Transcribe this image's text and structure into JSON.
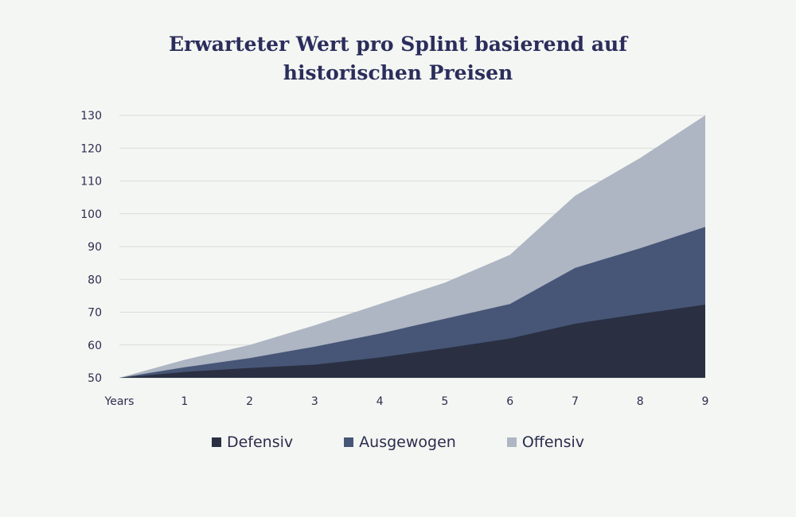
{
  "title_line1": "Erwarteter Wert pro Splint basierend auf",
  "title_line2": "historischen Preisen",
  "chart_data": {
    "type": "area",
    "stacked": true,
    "title": "Erwarteter Wert pro Splint basierend auf historischen Preisen",
    "xlabel": "",
    "ylabel": "",
    "categories": [
      "Years",
      "1",
      "2",
      "3",
      "4",
      "5",
      "6",
      "7",
      "8",
      "9"
    ],
    "x": [
      0,
      1,
      2,
      3,
      4,
      5,
      6,
      7,
      8,
      9
    ],
    "ylim": [
      50,
      130
    ],
    "yticks": [
      50,
      60,
      70,
      80,
      90,
      100,
      110,
      120,
      130
    ],
    "grid": true,
    "legend_position": "bottom",
    "series": [
      {
        "name": "Defensiv",
        "color": "#2a3042",
        "values": [
          50,
          51.8,
          53.0,
          54.0,
          56.2,
          59.0,
          62.0,
          66.5,
          69.5,
          72.3
        ]
      },
      {
        "name": "Ausgewogen",
        "color": "#475677",
        "values": [
          50,
          53.2,
          56.0,
          59.5,
          63.5,
          68.0,
          72.5,
          83.5,
          89.5,
          96.0
        ]
      },
      {
        "name": "Offensiv",
        "color": "#aeb5c3",
        "values": [
          50,
          55.5,
          60.0,
          66.0,
          72.5,
          79.0,
          87.5,
          105.5,
          117.0,
          130.0
        ]
      }
    ]
  }
}
